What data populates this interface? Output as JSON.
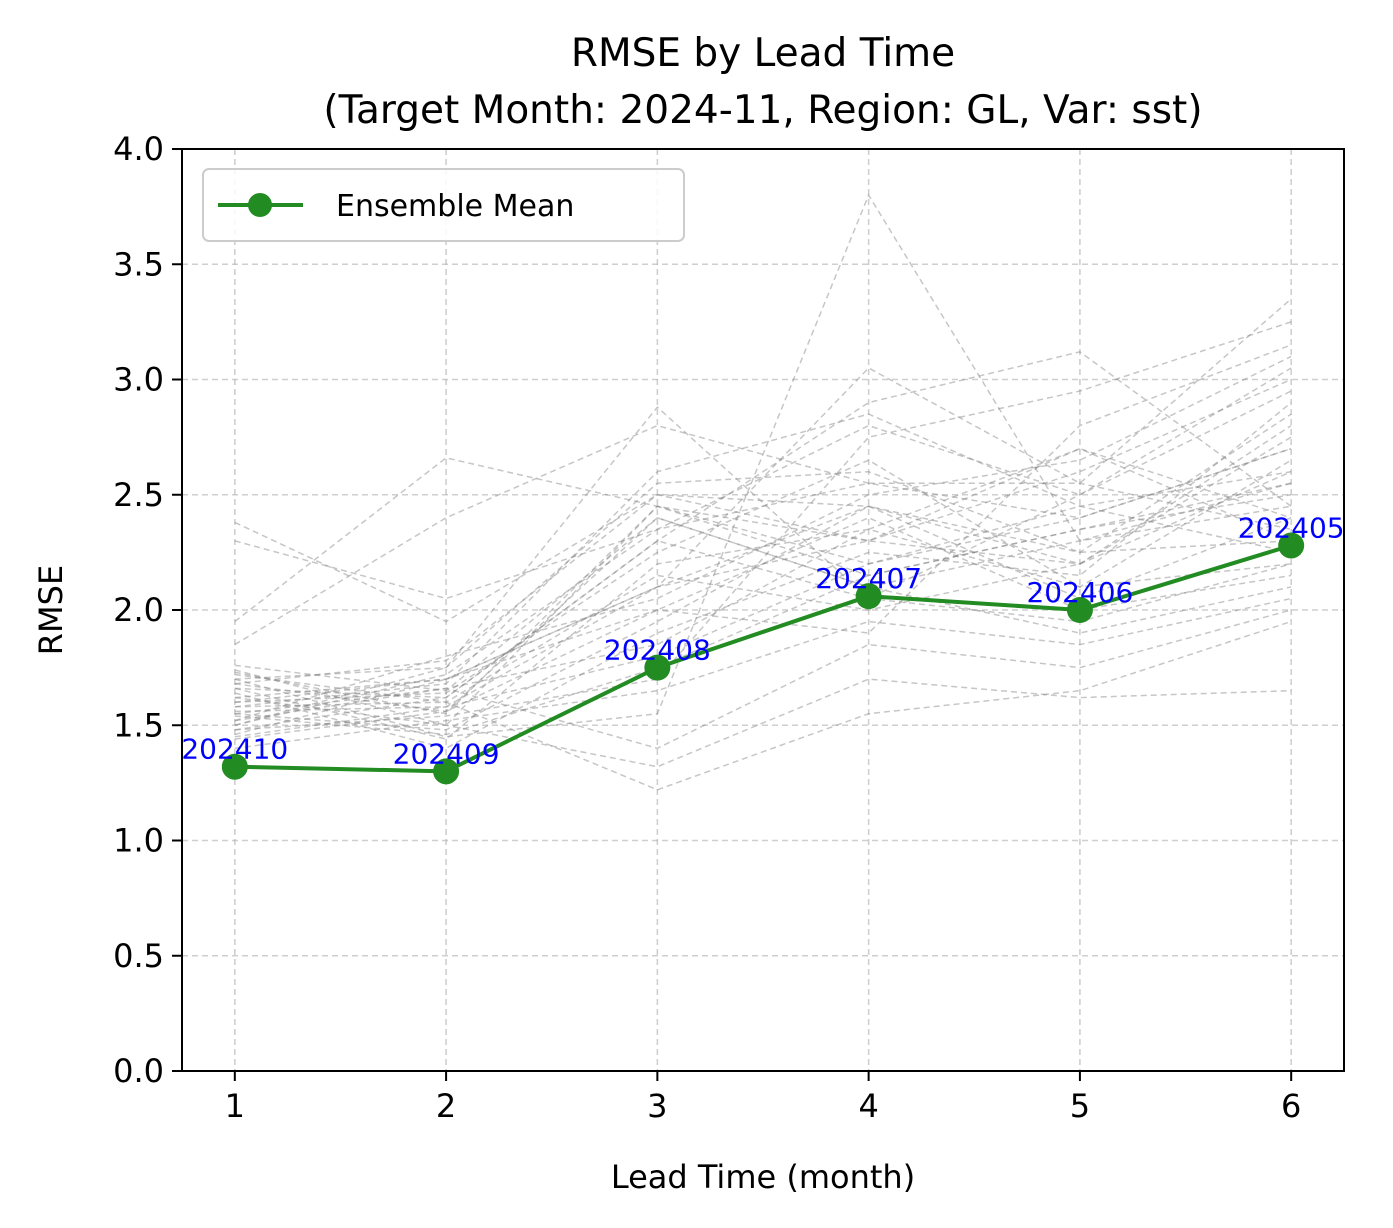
{
  "chart_data": {
    "type": "line",
    "title": [
      "RMSE by Lead Time",
      "(Target Month: 2024-11, Region: GL, Var: sst)"
    ],
    "xlabel": "Lead Time (month)",
    "ylabel": "RMSE",
    "x": [
      1,
      2,
      3,
      4,
      5,
      6
    ],
    "xlim": [
      0.75,
      6.25
    ],
    "ylim": [
      0.0,
      4.0
    ],
    "yticks": [
      "0.0",
      "0.5",
      "1.0",
      "1.5",
      "2.0",
      "2.5",
      "3.0",
      "3.5",
      "4.0"
    ],
    "xticks": [
      "1",
      "2",
      "3",
      "4",
      "5",
      "6"
    ],
    "grid": true,
    "legend_position": "upper-left",
    "series": [
      {
        "name": "Ensemble Mean",
        "color": "#228b22",
        "values": [
          1.32,
          1.3,
          1.75,
          2.06,
          2.0,
          2.28
        ],
        "point_labels": [
          "202410",
          "202409",
          "202408",
          "202407",
          "202406",
          "202405"
        ],
        "label_color": "#0000ff"
      }
    ],
    "member_series_color": "#808080",
    "member_series": [
      [
        1.73,
        1.55,
        2.45,
        2.15,
        2.35,
        2.55
      ],
      [
        1.62,
        1.7,
        2.1,
        2.3,
        2.2,
        2.8
      ],
      [
        1.55,
        1.48,
        1.95,
        2.45,
        2.05,
        2.4
      ],
      [
        1.48,
        1.62,
        2.3,
        2.05,
        2.5,
        2.95
      ],
      [
        1.7,
        1.75,
        2.55,
        2.6,
        2.25,
        2.3
      ],
      [
        1.45,
        1.58,
        1.8,
        2.2,
        2.4,
        2.7
      ],
      [
        1.66,
        1.44,
        2.2,
        2.35,
        2.1,
        2.2
      ],
      [
        1.52,
        1.8,
        2.05,
        2.5,
        2.65,
        3.1
      ],
      [
        1.76,
        1.65,
        2.4,
        2.1,
        2.3,
        2.45
      ],
      [
        1.4,
        1.52,
        1.65,
        1.95,
        1.85,
        2.05
      ],
      [
        1.58,
        1.68,
        2.6,
        2.85,
        2.45,
        2.6
      ],
      [
        1.64,
        1.4,
        1.9,
        2.25,
        2.15,
        2.9
      ],
      [
        1.5,
        1.72,
        2.35,
        2.55,
        2.55,
        2.35
      ],
      [
        1.72,
        1.6,
        2.15,
        2.0,
        2.2,
        2.75
      ],
      [
        1.44,
        1.56,
        2.0,
        2.4,
        2.0,
        2.15
      ],
      [
        1.68,
        1.78,
        2.5,
        2.3,
        2.6,
        3.0
      ],
      [
        1.54,
        1.46,
        1.75,
        2.15,
        2.35,
        2.5
      ],
      [
        1.6,
        1.64,
        2.25,
        2.65,
        2.1,
        2.65
      ],
      [
        1.74,
        1.5,
        2.45,
        2.2,
        2.45,
        2.25
      ],
      [
        1.46,
        1.7,
        2.1,
        2.45,
        2.25,
        2.85
      ],
      [
        2.38,
        1.95,
        2.5,
        2.45,
        2.2,
        2.6
      ],
      [
        2.3,
        2.05,
        2.35,
        2.8,
        2.5,
        3.05
      ],
      [
        1.95,
        2.66,
        2.45,
        2.3,
        2.7,
        2.4
      ],
      [
        1.85,
        2.4,
        2.8,
        2.55,
        2.4,
        2.7
      ],
      [
        1.58,
        1.6,
        1.22,
        1.55,
        1.65,
        1.95
      ],
      [
        1.62,
        1.5,
        1.32,
        1.7,
        1.62,
        1.65
      ],
      [
        1.55,
        1.66,
        1.4,
        1.85,
        1.75,
        2.0
      ],
      [
        1.5,
        1.75,
        2.88,
        2.05,
        1.95,
        2.2
      ],
      [
        1.7,
        1.45,
        1.55,
        3.8,
        2.3,
        2.55
      ],
      [
        1.56,
        1.58,
        2.1,
        3.05,
        2.55,
        3.35
      ],
      [
        1.66,
        1.62,
        2.3,
        2.9,
        3.12,
        2.45
      ],
      [
        1.48,
        1.54,
        1.7,
        2.75,
        2.95,
        3.25
      ],
      [
        1.6,
        1.7,
        2.0,
        1.9,
        2.8,
        3.15
      ],
      [
        1.68,
        1.56,
        2.4,
        2.1,
        1.9,
        2.1
      ],
      [
        1.52,
        1.66,
        1.85,
        2.35,
        2.7,
        2.3
      ]
    ]
  }
}
